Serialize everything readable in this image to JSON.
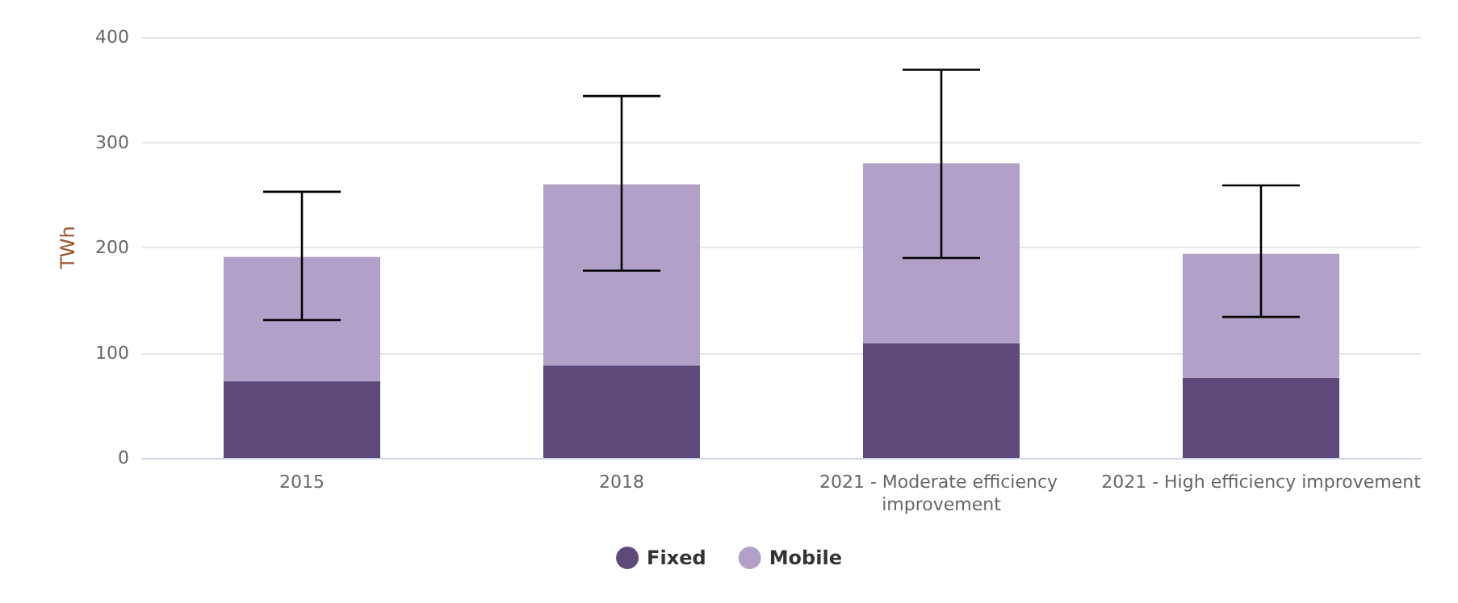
{
  "chart_data": {
    "type": "bar",
    "stacked": true,
    "ylabel": "TWh",
    "categories": [
      "2015",
      "2018",
      "2021 - Moderate efficiency improvement",
      "2021 - High efficiency improvement"
    ],
    "series": [
      {
        "name": "Fixed",
        "color": "#5f487a",
        "values": [
          73,
          88,
          109,
          76
        ]
      },
      {
        "name": "Mobile",
        "color": "#b1a1c8",
        "values": [
          118,
          172,
          171,
          118
        ],
        "errors": [
          [
            131,
            253
          ],
          [
            178,
            344
          ],
          [
            190,
            369
          ],
          [
            134,
            259
          ]
        ]
      }
    ],
    "ylim": [
      0,
      400
    ],
    "yticks": [
      0,
      100,
      200,
      300,
      400
    ],
    "grid": "y",
    "legend": "bottom"
  }
}
